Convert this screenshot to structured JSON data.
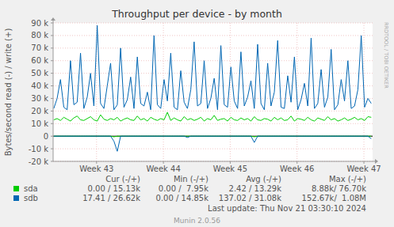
{
  "chart_data": {
    "type": "line",
    "title": "Throughput per device - by month",
    "y_label": "Bytes/second read (-) / write (+)",
    "x": [
      42.36,
      42.41,
      42.46,
      42.51,
      42.56,
      42.61,
      42.66,
      42.71,
      42.76,
      42.81,
      42.86,
      42.91,
      42.96,
      43.01,
      43.06,
      43.11,
      43.16,
      43.21,
      43.26,
      43.31,
      43.36,
      43.41,
      43.46,
      43.51,
      43.56,
      43.61,
      43.66,
      43.71,
      43.76,
      43.81,
      43.86,
      43.91,
      43.96,
      44.01,
      44.06,
      44.11,
      44.16,
      44.21,
      44.26,
      44.31,
      44.36,
      44.41,
      44.46,
      44.51,
      44.56,
      44.61,
      44.66,
      44.71,
      44.76,
      44.81,
      44.86,
      44.91,
      44.96,
      45.01,
      45.06,
      45.11,
      45.16,
      45.21,
      45.26,
      45.31,
      45.36,
      45.41,
      45.46,
      45.51,
      45.56,
      45.61,
      45.66,
      45.71,
      45.76,
      45.81,
      45.86,
      45.91,
      45.96,
      46.01,
      46.06,
      46.11,
      46.16,
      46.21,
      46.26,
      46.31,
      46.36,
      46.41,
      46.46,
      46.51,
      46.56,
      46.61,
      46.66,
      46.71,
      46.76,
      46.81,
      46.86,
      46.91,
      46.96,
      47.01,
      47.06,
      47.11
    ],
    "xlim": [
      42.35,
      47.13
    ],
    "xticks": [
      {
        "value": 43,
        "label": "Week 43"
      },
      {
        "value": 44,
        "label": "Week 44"
      },
      {
        "value": 45,
        "label": "Week 45"
      },
      {
        "value": 46,
        "label": "Week 46"
      },
      {
        "value": 47,
        "label": "Week 47"
      }
    ],
    "ylim": [
      -20000,
      90000
    ],
    "yticks": [
      {
        "value": -20000,
        "label": "-20 k"
      },
      {
        "value": -10000,
        "label": "-10 k"
      },
      0,
      {
        "value": 10000,
        "label": "10 k"
      },
      {
        "value": 20000,
        "label": "20 k"
      },
      {
        "value": 30000,
        "label": "30 k"
      },
      {
        "value": 40000,
        "label": "40 k"
      },
      {
        "value": 50000,
        "label": "50 k"
      },
      {
        "value": 60000,
        "label": "60 k"
      },
      {
        "value": 70000,
        "label": "70 k"
      },
      {
        "value": 80000,
        "label": "80 k"
      },
      {
        "value": 90000,
        "label": "90 k"
      }
    ],
    "grid": true,
    "stats_columns": [
      "Cur (-/+)",
      "Min (-/+)",
      "Avg (-/+)",
      "Max (-/+)"
    ],
    "series": [
      {
        "name": "sda",
        "color": "#00cc00",
        "values": [
          13000,
          14000,
          12500,
          15000,
          13500,
          12000,
          14500,
          16000,
          13000,
          12500,
          14000,
          15500,
          13000,
          12000,
          17000,
          13500,
          12500,
          14000,
          13000,
          15000,
          12000,
          13500,
          14500,
          13000,
          12500,
          16000,
          13000,
          14000,
          12000,
          15000,
          13500,
          12500,
          14000,
          13000,
          19000,
          12500,
          14500,
          13000,
          12000,
          15500,
          13000,
          14000,
          12500,
          13500,
          15000,
          12000,
          14000,
          13000,
          16500,
          12500,
          13500,
          14000,
          12000,
          15000,
          13000,
          12500,
          14500,
          13000,
          14000,
          12000,
          15500,
          13000,
          12500,
          14000,
          13500,
          12000,
          15000,
          13000,
          14500,
          12500,
          13000,
          16000,
          12000,
          14000,
          13500,
          12500,
          15000,
          13000,
          12000,
          14500,
          13500,
          12500,
          15500,
          13000,
          14000,
          12000,
          13000,
          14500,
          12500,
          13500,
          15000,
          13000,
          14000,
          12500,
          15500,
          15000
        ],
        "read": [
          0,
          0,
          0,
          0,
          0,
          0,
          0,
          0,
          0,
          0,
          0,
          0,
          0,
          0,
          0,
          0,
          0,
          0,
          -500,
          0,
          0,
          0,
          0,
          0,
          0,
          0,
          0,
          0,
          0,
          0,
          0,
          0,
          0,
          0,
          0,
          0,
          0,
          0,
          0,
          0,
          0,
          0,
          0,
          0,
          0,
          0,
          0,
          0,
          0,
          0,
          0,
          0,
          0,
          0,
          0,
          0,
          0,
          0,
          0,
          0,
          -500,
          0,
          0,
          0,
          0,
          0,
          0,
          0,
          0,
          0,
          0,
          0,
          0,
          0,
          0,
          0,
          0,
          0,
          0,
          0,
          0,
          0,
          0,
          0,
          0,
          0,
          0,
          0,
          0,
          0,
          0,
          0,
          0,
          0,
          0,
          0
        ],
        "stats": [
          "0.00 / 15.13k",
          "0.00 /  7.95k",
          "2.42 / 13.29k",
          "8.88k/ 76.70k"
        ]
      },
      {
        "name": "sdb",
        "color": "#0066b3",
        "values": [
          22000,
          30000,
          45000,
          23000,
          21000,
          60000,
          25000,
          27000,
          66000,
          22000,
          31000,
          50000,
          24000,
          88000,
          26000,
          22000,
          40000,
          58000,
          21000,
          25000,
          70000,
          23000,
          29000,
          47000,
          22000,
          63000,
          26000,
          24000,
          35000,
          21000,
          80000,
          25000,
          22000,
          45000,
          28000,
          66000,
          23000,
          21000,
          52000,
          27000,
          22000,
          37000,
          75000,
          24000,
          26000,
          60000,
          22000,
          30000,
          46000,
          21000,
          72000,
          25000,
          23000,
          55000,
          28000,
          22000,
          67000,
          24000,
          31000,
          44000,
          22000,
          73000,
          26000,
          21000,
          58000,
          24000,
          35000,
          76000,
          23000,
          22000,
          48000,
          27000,
          63000,
          21000,
          29000,
          42000,
          24000,
          78000,
          22000,
          26000,
          53000,
          23000,
          31000,
          69000,
          21000,
          25000,
          45000,
          28000,
          60000,
          22000,
          24000,
          37000,
          80000,
          23000,
          30000,
          26000
        ],
        "read": [
          0,
          0,
          0,
          0,
          0,
          0,
          0,
          0,
          0,
          0,
          0,
          0,
          0,
          0,
          0,
          0,
          0,
          0,
          -4000,
          -12000,
          0,
          0,
          0,
          0,
          0,
          0,
          0,
          0,
          0,
          0,
          0,
          0,
          0,
          0,
          0,
          0,
          0,
          0,
          0,
          0,
          -1000,
          0,
          0,
          0,
          0,
          0,
          0,
          0,
          0,
          0,
          0,
          0,
          0,
          0,
          0,
          0,
          0,
          0,
          0,
          0,
          -5000,
          0,
          0,
          0,
          0,
          0,
          0,
          0,
          0,
          0,
          0,
          0,
          0,
          0,
          0,
          0,
          0,
          0,
          0,
          0,
          0,
          0,
          0,
          0,
          0,
          0,
          0,
          0,
          0,
          0,
          0,
          0,
          0,
          0,
          0,
          -2000
        ],
        "stats": [
          "17.41 / 26.62k",
          "0.00 / 14.85k",
          "137.02 / 31.08k",
          "152.67k/  1.08M"
        ]
      }
    ],
    "annotations": [
      "Last update: Thu Nov 21 03:30:10 2024",
      "Munin 2.0.56",
      "RRDTOOL / TOBI OETIKER"
    ]
  }
}
